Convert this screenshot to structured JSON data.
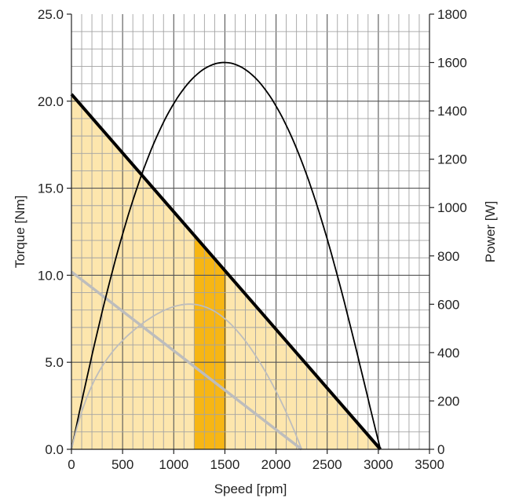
{
  "chart_data": {
    "type": "line",
    "title": "",
    "xlabel": "Speed [rpm]",
    "ylabel": "Torque [Nm]",
    "y2label": "Power [W]",
    "xlim": [
      0,
      3500
    ],
    "ylim": [
      0,
      25
    ],
    "y2lim": [
      0,
      1800
    ],
    "x_ticks": [
      "0",
      "500",
      "1000",
      "1500",
      "2000",
      "2500",
      "3000",
      "3500"
    ],
    "y_ticks": [
      "0.0",
      "5.0",
      "10.0",
      "15.0",
      "20.0",
      "25.0"
    ],
    "y2_ticks": [
      "0",
      "200",
      "400",
      "600",
      "800",
      "1000",
      "1200",
      "1400",
      "1600",
      "1800"
    ],
    "grid": true,
    "minor_grid": {
      "x_step": 100,
      "y_step": 1
    },
    "series": [
      {
        "axis": "torque",
        "shape": "line",
        "color": "#000000",
        "x": [
          0,
          3020
        ],
        "y": [
          20.4,
          0
        ]
      },
      {
        "axis": "torque",
        "shape": "line",
        "color": "#bdbdbd",
        "x": [
          0,
          2250
        ],
        "y": [
          10.2,
          0
        ]
      },
      {
        "axis": "power",
        "shape": "curve",
        "color": "#000000",
        "x": [
          0,
          500,
          1000,
          1510,
          2000,
          2500,
          3020
        ],
        "y": [
          0,
          890,
          1430,
          1600,
          1420,
          870,
          0
        ]
      },
      {
        "axis": "power",
        "shape": "curve",
        "color": "#bdbdbd",
        "x": [
          0,
          500,
          1000,
          1125,
          1500,
          2000,
          2250
        ],
        "y": [
          0,
          450,
          590,
          600,
          540,
          240,
          0
        ]
      }
    ],
    "regions": [
      {
        "name": "continuous-operating-region",
        "color": "#fde6ad",
        "x": [
          0,
          3020
        ],
        "y": [
          20.4,
          0
        ]
      },
      {
        "name": "rated-operating-band",
        "color": "#f7b614",
        "x": [
          1200,
          1510
        ],
        "y": [
          12.3,
          10.2
        ]
      }
    ]
  }
}
